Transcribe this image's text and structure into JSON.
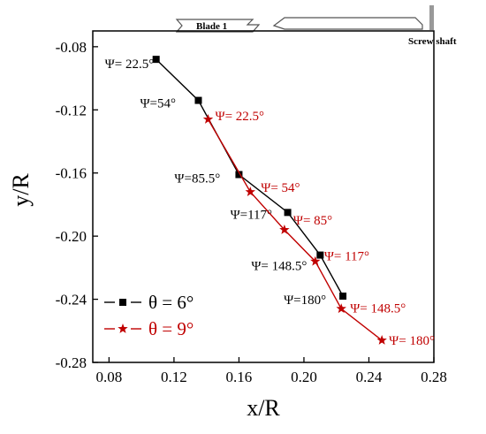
{
  "chart_data": {
    "type": "line",
    "xlabel": "x/R",
    "ylabel": "y/R",
    "xlim": [
      0.07,
      0.28
    ],
    "ylim": [
      -0.28,
      -0.07
    ],
    "xticks": [
      "0.08",
      "0.12",
      "0.16",
      "0.20",
      "0.24",
      "0.28"
    ],
    "yticks": [
      "-0.08",
      "-0.12",
      "-0.16",
      "-0.20",
      "-0.24",
      "-0.28"
    ],
    "legend_position": "bottom-left",
    "series": [
      {
        "name": "θ = 6°",
        "color": "#000000",
        "marker": "square",
        "x": [
          0.109,
          0.135,
          0.16,
          0.19,
          0.21,
          0.224
        ],
        "y": [
          -0.088,
          -0.114,
          -0.161,
          -0.185,
          -0.212,
          -0.238
        ],
        "labels": [
          "Ψ= 22.5°",
          "Ψ=54°",
          "Ψ=85.5°",
          "Ψ=117°",
          "Ψ= 148.5°",
          "Ψ=180°"
        ]
      },
      {
        "name": "θ = 9°",
        "color": "#c00000",
        "marker": "star",
        "x": [
          0.141,
          0.167,
          0.188,
          0.207,
          0.223,
          0.248
        ],
        "y": [
          -0.126,
          -0.172,
          -0.196,
          -0.216,
          -0.246,
          -0.266
        ],
        "labels": [
          "Ψ= 22.5°",
          "Ψ= 54°",
          "Ψ= 85°",
          "Ψ= 117°",
          "Ψ= 148.5°",
          "Ψ= 180°"
        ]
      }
    ]
  },
  "schematic": {
    "blade_label": "Blade 1",
    "shaft_label": "Screw shaft"
  }
}
